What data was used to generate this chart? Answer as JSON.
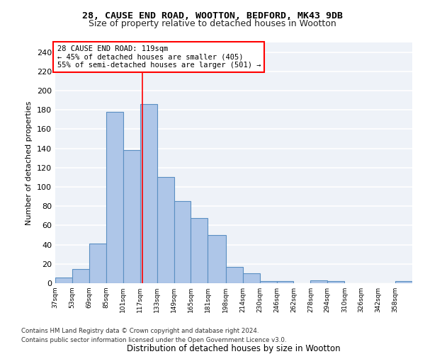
{
  "title1": "28, CAUSE END ROAD, WOOTTON, BEDFORD, MK43 9DB",
  "title2": "Size of property relative to detached houses in Wootton",
  "xlabel": "Distribution of detached houses by size in Wootton",
  "ylabel": "Number of detached properties",
  "bar_values": [
    6,
    15,
    41,
    178,
    138,
    186,
    110,
    85,
    68,
    50,
    17,
    10,
    2,
    2,
    0,
    3,
    2,
    0,
    0,
    0,
    2
  ],
  "bin_labels": [
    "37sqm",
    "53sqm",
    "69sqm",
    "85sqm",
    "101sqm",
    "117sqm",
    "133sqm",
    "149sqm",
    "165sqm",
    "181sqm",
    "198sqm",
    "214sqm",
    "230sqm",
    "246sqm",
    "262sqm",
    "278sqm",
    "294sqm",
    "310sqm",
    "326sqm",
    "342sqm",
    "358sqm"
  ],
  "bar_color": "#aec6e8",
  "bar_edge_color": "#5a8fc2",
  "bg_color": "#eef2f8",
  "grid_color": "#ffffff",
  "vline_x": 119,
  "annotation_box_text": "28 CAUSE END ROAD: 119sqm\n← 45% of detached houses are smaller (405)\n55% of semi-detached houses are larger (501) →",
  "footnote1": "Contains HM Land Registry data © Crown copyright and database right 2024.",
  "footnote2": "Contains public sector information licensed under the Open Government Licence v3.0.",
  "ylim": [
    0,
    250
  ],
  "yticks": [
    0,
    20,
    40,
    60,
    80,
    100,
    120,
    140,
    160,
    180,
    200,
    220,
    240
  ],
  "bin_edges": [
    37,
    53,
    69,
    85,
    101,
    117,
    133,
    149,
    165,
    181,
    198,
    214,
    230,
    246,
    262,
    278,
    294,
    310,
    326,
    342,
    358,
    374
  ]
}
